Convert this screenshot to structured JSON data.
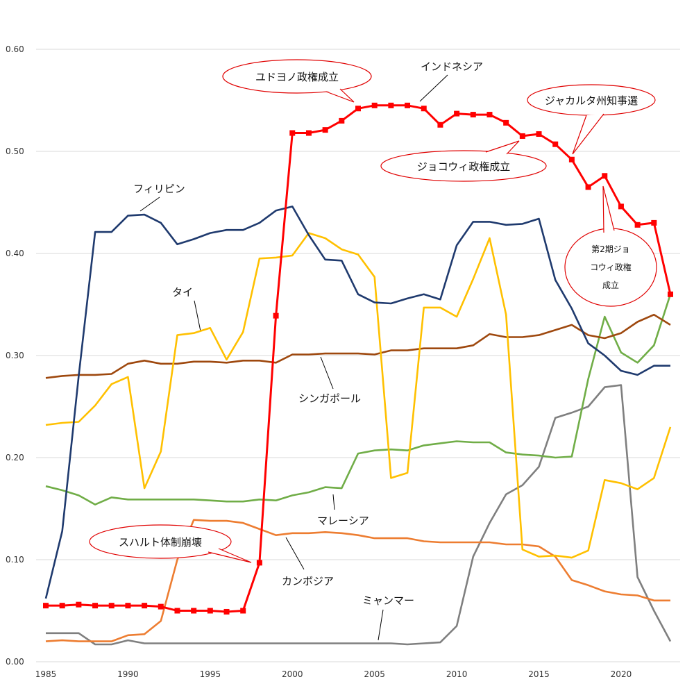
{
  "chart_data": {
    "type": "line",
    "title": "",
    "xlabel": "",
    "ylabel": "",
    "xlim": [
      1985,
      2023
    ],
    "ylim": [
      0,
      0.6
    ],
    "grid": "horizontal",
    "x_ticks": [
      "1985",
      "1990",
      "1995",
      "2000",
      "2005",
      "2010",
      "2015",
      "2020"
    ],
    "y_ticks": [
      "0.00",
      "0.10",
      "0.20",
      "0.30",
      "0.40",
      "0.50",
      "0.60"
    ],
    "x": [
      1985,
      1986,
      1987,
      1988,
      1989,
      1990,
      1991,
      1992,
      1993,
      1994,
      1995,
      1996,
      1997,
      1998,
      1999,
      2000,
      2001,
      2002,
      2003,
      2004,
      2005,
      2006,
      2007,
      2008,
      2009,
      2010,
      2011,
      2012,
      2013,
      2014,
      2015,
      2016,
      2017,
      2018,
      2019,
      2020,
      2021,
      2022,
      2023
    ],
    "series": [
      {
        "name": "インドネシア",
        "color": "#ff0000",
        "markers": true,
        "values": [
          0.055,
          0.055,
          0.056,
          0.055,
          0.055,
          0.055,
          0.055,
          0.054,
          0.05,
          0.05,
          0.05,
          0.049,
          0.05,
          0.097,
          0.339,
          0.518,
          0.518,
          0.521,
          0.53,
          0.542,
          0.545,
          0.545,
          0.545,
          0.542,
          0.526,
          0.537,
          0.536,
          0.536,
          0.528,
          0.515,
          0.517,
          0.507,
          0.492,
          0.465,
          0.476,
          0.446,
          0.428,
          0.43,
          0.36
        ]
      },
      {
        "name": "フィリピン",
        "color": "#1f3a6e",
        "markers": false,
        "values": [
          0.062,
          0.128,
          0.28,
          0.421,
          0.421,
          0.437,
          0.438,
          0.43,
          0.409,
          0.414,
          0.42,
          0.423,
          0.423,
          0.43,
          0.442,
          0.446,
          0.418,
          0.394,
          0.393,
          0.36,
          0.352,
          0.351,
          0.356,
          0.36,
          0.355,
          0.408,
          0.431,
          0.431,
          0.428,
          0.429,
          0.434,
          0.374,
          0.346,
          0.312,
          0.3,
          0.285,
          0.281,
          0.29,
          0.29
        ]
      },
      {
        "name": "タイ",
        "color": "#ffc000",
        "markers": false,
        "values": [
          0.232,
          0.234,
          0.235,
          0.251,
          0.272,
          0.279,
          0.17,
          0.206,
          0.32,
          0.322,
          0.327,
          0.296,
          0.323,
          0.395,
          0.396,
          0.398,
          0.42,
          0.415,
          0.404,
          0.399,
          0.377,
          0.18,
          0.185,
          0.347,
          0.347,
          0.338,
          0.375,
          0.415,
          0.34,
          0.11,
          0.103,
          0.104,
          0.102,
          0.109,
          0.178,
          0.175,
          0.169,
          0.18,
          0.23
        ]
      },
      {
        "name": "シンガポール",
        "color": "#9e480e",
        "markers": false,
        "values": [
          0.278,
          0.28,
          0.281,
          0.281,
          0.282,
          0.292,
          0.295,
          0.292,
          0.292,
          0.294,
          0.294,
          0.293,
          0.295,
          0.295,
          0.293,
          0.301,
          0.301,
          0.302,
          0.302,
          0.302,
          0.301,
          0.305,
          0.305,
          0.307,
          0.307,
          0.307,
          0.31,
          0.321,
          0.318,
          0.318,
          0.32,
          0.325,
          0.33,
          0.32,
          0.317,
          0.322,
          0.333,
          0.34,
          0.33
        ]
      },
      {
        "name": "マレーシア",
        "color": "#70ad47",
        "markers": false,
        "values": [
          0.172,
          0.168,
          0.163,
          0.154,
          0.161,
          0.159,
          0.159,
          0.159,
          0.159,
          0.159,
          0.158,
          0.157,
          0.157,
          0.159,
          0.158,
          0.163,
          0.166,
          0.171,
          0.17,
          0.204,
          0.207,
          0.208,
          0.207,
          0.212,
          0.214,
          0.216,
          0.215,
          0.215,
          0.205,
          0.203,
          0.202,
          0.2,
          0.201,
          0.277,
          0.338,
          0.303,
          0.293,
          0.31,
          0.36
        ]
      },
      {
        "name": "カンボジア",
        "color": "#ed7d31",
        "markers": false,
        "values": [
          0.02,
          0.021,
          0.02,
          0.02,
          0.02,
          0.026,
          0.027,
          0.04,
          0.1,
          0.139,
          0.138,
          0.138,
          0.136,
          0.13,
          0.124,
          0.126,
          0.126,
          0.127,
          0.126,
          0.124,
          0.121,
          0.121,
          0.121,
          0.118,
          0.117,
          0.117,
          0.117,
          0.117,
          0.115,
          0.115,
          0.113,
          0.103,
          0.08,
          0.075,
          0.069,
          0.066,
          0.065,
          0.06,
          0.06
        ]
      },
      {
        "name": "ミャンマー",
        "color": "#7f7f7f",
        "markers": false,
        "values": [
          0.028,
          0.028,
          0.028,
          0.017,
          0.017,
          0.021,
          0.018,
          0.018,
          0.018,
          0.018,
          0.018,
          0.018,
          0.018,
          0.018,
          0.018,
          0.018,
          0.018,
          0.018,
          0.018,
          0.018,
          0.018,
          0.018,
          0.017,
          0.018,
          0.019,
          0.035,
          0.103,
          0.136,
          0.164,
          0.173,
          0.191,
          0.239,
          0.244,
          0.25,
          0.269,
          0.271,
          0.083,
          0.05,
          0.02
        ]
      }
    ],
    "series_labels": [
      {
        "text": "インドネシア",
        "series": "インドネシア"
      },
      {
        "text": "フィリピン",
        "series": "フィリピン"
      },
      {
        "text": "タイ",
        "series": "タイ"
      },
      {
        "text": "シンガポール",
        "series": "シンガポール"
      },
      {
        "text": "マレーシア",
        "series": "マレーシア"
      },
      {
        "text": "カンボジア",
        "series": "カンボジア"
      },
      {
        "text": "ミャンマー",
        "series": "ミャンマー"
      }
    ],
    "annotations": [
      {
        "text": "ユドヨノ政権成立",
        "year": 2004
      },
      {
        "text": "ジョコウィ政権成立",
        "year": 2014
      },
      {
        "text": "ジャカルタ州知事選",
        "year": 2017
      },
      {
        "text": "スハルト体制崩壊",
        "year": 1998
      },
      {
        "text": [
          "第2期ジョ",
          "コウィ政権",
          "成立"
        ],
        "year": 2019
      }
    ]
  }
}
